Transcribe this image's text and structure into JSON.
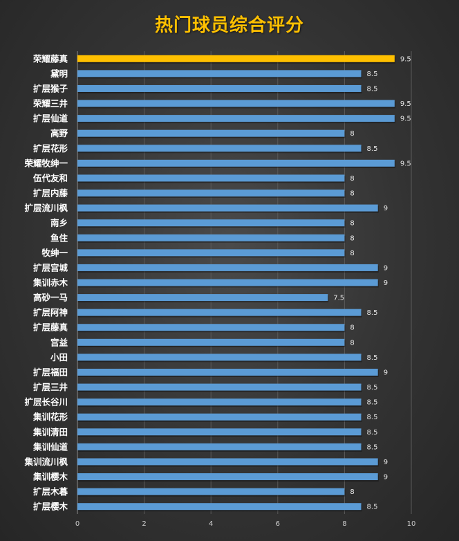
{
  "chart_data": {
    "type": "bar",
    "orientation": "horizontal",
    "title": "热门球员综合评分",
    "categories": [
      "荣耀藤真",
      "黛明",
      "扩层猴子",
      "荣耀三井",
      "扩层仙道",
      "高野",
      "扩层花形",
      "荣耀牧绅一",
      "伍代友和",
      "扩层内藤",
      "扩层流川枫",
      "南乡",
      "鱼住",
      "牧绅一",
      "扩层宫城",
      "集训赤木",
      "高砂一马",
      "扩层阿神",
      "扩层藤真",
      "宫益",
      "小田",
      "扩层福田",
      "扩层三井",
      "扩层长谷川",
      "集训花形",
      "集训清田",
      "集训仙道",
      "集训流川枫",
      "集训樱木",
      "扩层木暮",
      "扩层樱木"
    ],
    "values": [
      9.5,
      8.5,
      8.5,
      9.5,
      9.5,
      8,
      8.5,
      9.5,
      8,
      8,
      9,
      8,
      8,
      8,
      9,
      9,
      7.5,
      8.5,
      8,
      8,
      8.5,
      9,
      8.5,
      8.5,
      8.5,
      8.5,
      8.5,
      9,
      9,
      8,
      8.5
    ],
    "xlim": [
      0,
      10
    ],
    "xticks": [
      0,
      2,
      4,
      6,
      8,
      10
    ],
    "grid": true,
    "legend": "none",
    "highlight_index": 0,
    "colors": {
      "bar": "#5b9bd5",
      "bar_highlight": "#ffc000",
      "title": "#ffc000"
    }
  }
}
